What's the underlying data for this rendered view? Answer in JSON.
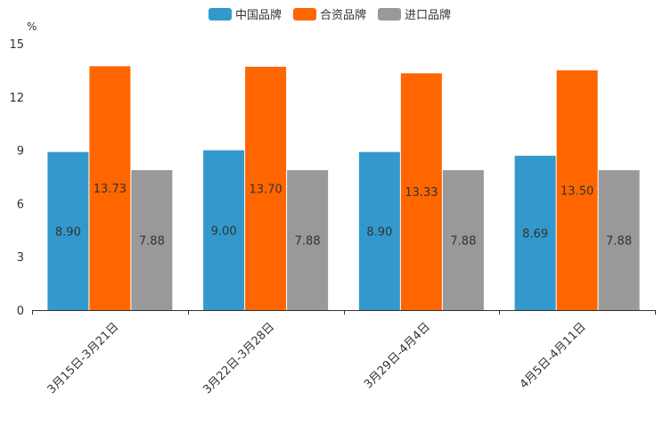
{
  "chart_data": {
    "type": "bar",
    "title": "",
    "ylabel": "%",
    "xlabel": "",
    "ylim": [
      0,
      15
    ],
    "yticks": [
      0,
      3,
      6,
      9,
      12,
      15
    ],
    "grid": false,
    "legend_position": "top-center",
    "categories": [
      "3月15日-3月21日",
      "3月22日-3月28日",
      "3月29日-4月4日",
      "4月5日-4月11日"
    ],
    "series": [
      {
        "name": "中国品牌",
        "color": "#3399cc",
        "values": [
          8.9,
          9.0,
          8.9,
          8.69
        ],
        "labels": [
          "8.90",
          "9.00",
          "8.90",
          "8.69"
        ]
      },
      {
        "name": "合资品牌",
        "color": "#ff6600",
        "values": [
          13.73,
          13.7,
          13.33,
          13.5
        ],
        "labels": [
          "13.73",
          "13.70",
          "13.33",
          "13.50"
        ]
      },
      {
        "name": "进口品牌",
        "color": "#999999",
        "values": [
          7.88,
          7.88,
          7.88,
          7.88
        ],
        "labels": [
          "7.88",
          "7.88",
          "7.88",
          "7.88"
        ]
      }
    ]
  }
}
